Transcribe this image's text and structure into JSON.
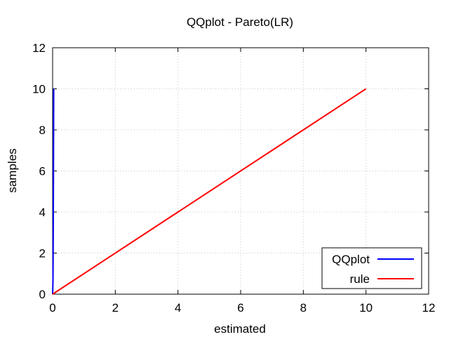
{
  "chart_data": {
    "type": "line",
    "title": "QQplot - Pareto(LR)",
    "xlabel": "estimated",
    "ylabel": "samples",
    "xlim": [
      0,
      12
    ],
    "ylim": [
      0,
      12
    ],
    "xticks": [
      "0",
      "2",
      "4",
      "6",
      "8",
      "10",
      "12"
    ],
    "yticks": [
      "0",
      "2",
      "4",
      "6",
      "8",
      "10",
      "12"
    ],
    "grid": true,
    "legend_position": "bottom-right",
    "series": [
      {
        "name": "QQplot",
        "color": "#0000ff",
        "points": [
          [
            0,
            0
          ],
          [
            0.01,
            0.5
          ],
          [
            0.015,
            1.5
          ],
          [
            0.02,
            3
          ],
          [
            0.025,
            5
          ],
          [
            0.03,
            7.5
          ],
          [
            0.035,
            10
          ]
        ]
      },
      {
        "name": "rule",
        "color": "#ff0000",
        "points": [
          [
            0,
            0
          ],
          [
            10,
            10
          ]
        ]
      }
    ]
  }
}
